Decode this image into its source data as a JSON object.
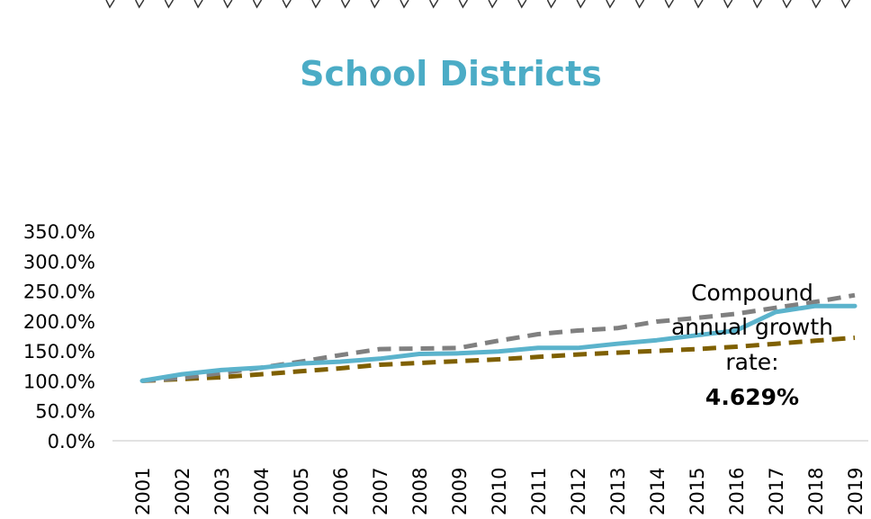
{
  "chart_data": {
    "type": "line",
    "title": "School Districts",
    "xlabel": "",
    "ylabel": "",
    "ylim": [
      0,
      350
    ],
    "y_ticks": [
      "0.0%",
      "50.0%",
      "100.0%",
      "150.0%",
      "200.0%",
      "250.0%",
      "300.0%",
      "350.0%"
    ],
    "y_tick_values": [
      0,
      50,
      100,
      150,
      200,
      250,
      300,
      350
    ],
    "categories": [
      "2001",
      "2002",
      "2003",
      "2004",
      "2005",
      "2006",
      "2007",
      "2008",
      "2009",
      "2010",
      "2011",
      "2012",
      "2013",
      "2014",
      "2015",
      "2016",
      "2017",
      "2018",
      "2019"
    ],
    "grid": false,
    "series": [
      {
        "color": "#5BB3CC",
        "style": "solid",
        "values": [
          100,
          111,
          118,
          122,
          129,
          132,
          137,
          145,
          146,
          149,
          155,
          155,
          162,
          168,
          176,
          184,
          215,
          225,
          225
        ]
      },
      {
        "color": "#808080",
        "style": "dashed",
        "values": [
          100,
          105,
          113,
          122,
          132,
          143,
          153,
          154,
          155,
          167,
          178,
          184,
          188,
          199,
          205,
          212,
          222,
          232,
          243
        ]
      },
      {
        "color": "#7F6000",
        "style": "dashed",
        "values": [
          100,
          103,
          106,
          111,
          116,
          121,
          127,
          130,
          133,
          136,
          140,
          144,
          147,
          150,
          153,
          157,
          162,
          167,
          172
        ]
      }
    ],
    "annotation": {
      "lines": [
        "Compound",
        "annual growth",
        "rate:"
      ],
      "value": "4.629%"
    }
  }
}
